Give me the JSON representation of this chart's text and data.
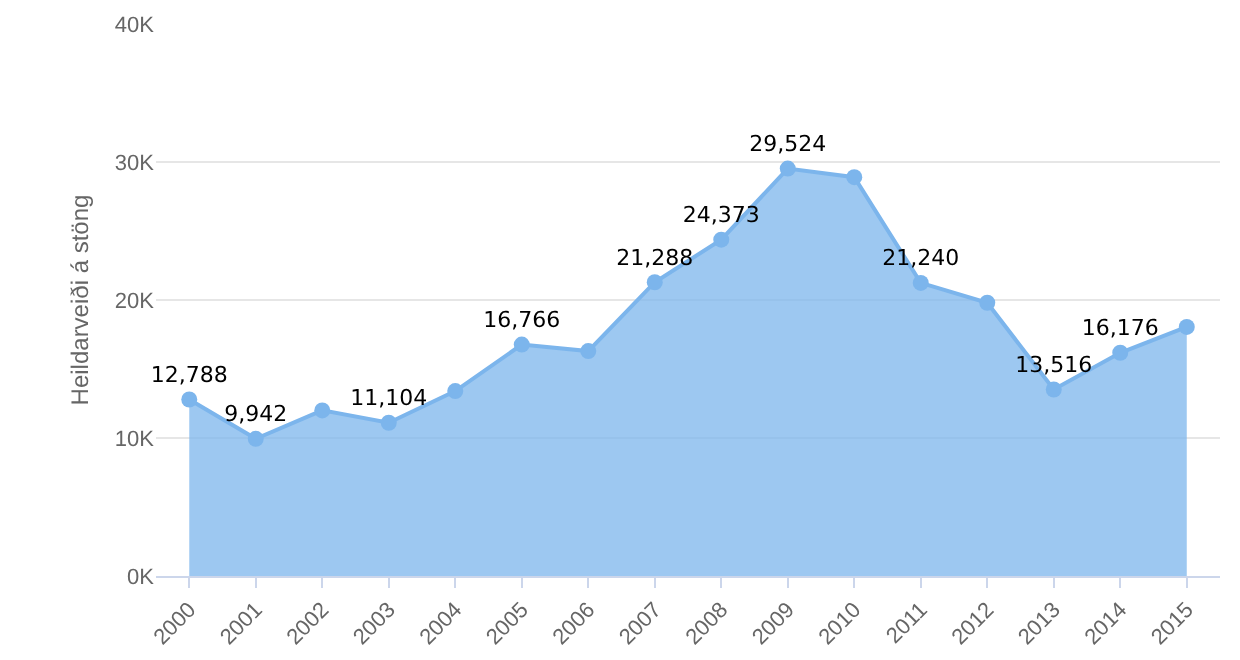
{
  "chart_data": {
    "type": "area",
    "ylabel": "Heildarveiði á stöng",
    "categories": [
      "2000",
      "2001",
      "2002",
      "2003",
      "2004",
      "2005",
      "2006",
      "2007",
      "2008",
      "2009",
      "2010",
      "2011",
      "2012",
      "2013",
      "2014",
      "2015"
    ],
    "series": [
      {
        "color": "#7cb5ec",
        "values": [
          12788,
          9942,
          12000,
          11104,
          13400,
          16766,
          16300,
          21288,
          24373,
          29524,
          28900,
          21240,
          19800,
          13516,
          16176,
          18050
        ],
        "value_labels": [
          "12,788",
          "9,942",
          null,
          "11,104",
          null,
          "16,766",
          null,
          "21,288",
          "24,373",
          "29,524",
          null,
          "21,240",
          null,
          "13,516",
          "16,176",
          null
        ]
      }
    ],
    "ylim": [
      0,
      40000
    ],
    "yticks": [
      {
        "value": 0,
        "label": "0K"
      },
      {
        "value": 10000,
        "label": "10K"
      },
      {
        "value": 20000,
        "label": "20K"
      },
      {
        "value": 30000,
        "label": "30K"
      },
      {
        "value": 40000,
        "label": "40K"
      }
    ],
    "grid": "y",
    "legend": false,
    "marker": "circle",
    "line_style": "solid"
  }
}
